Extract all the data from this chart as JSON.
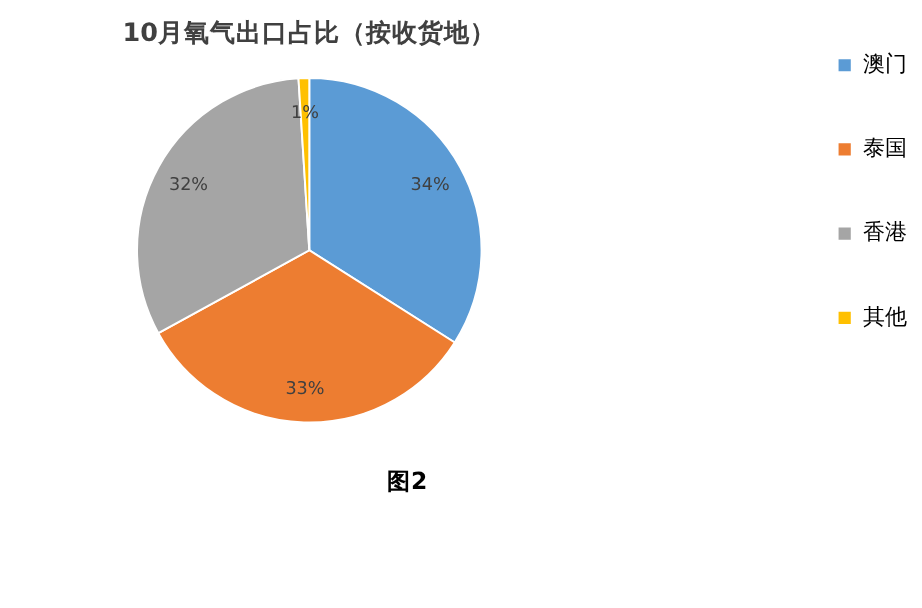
{
  "chart_data": {
    "type": "pie",
    "title": "10月氧气出口占比（按收货地）",
    "categories": [
      "澳门",
      "泰国",
      "香港",
      "其他"
    ],
    "values": [
      34,
      33,
      32,
      1
    ],
    "value_labels": [
      "34%",
      "33%",
      "32%",
      "1%"
    ],
    "colors": [
      "#5b9bd5",
      "#ed7d31",
      "#a5a5a5",
      "#ffc000"
    ],
    "legend": "right",
    "annotations": [
      "图2"
    ]
  }
}
